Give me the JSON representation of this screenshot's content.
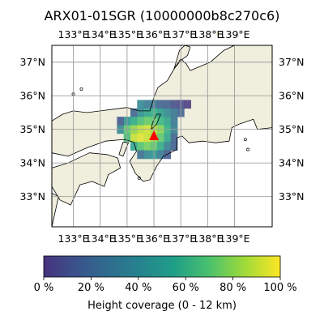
{
  "title": "ARX01-01SGR (10000000b8c270c6)",
  "map": {
    "lon_ticks": [
      "133°E",
      "134°E",
      "135°E",
      "136°E",
      "137°E",
      "138°E",
      "139°E"
    ],
    "lat_ticks": [
      "33°N",
      "34°N",
      "35°N",
      "36°N",
      "37°N"
    ],
    "lon_range": [
      132.2,
      140.4
    ],
    "lat_range": [
      32.1,
      37.5
    ],
    "land_color": "#f0eedc",
    "sea_color": "#ffffff",
    "grid": true,
    "colormap": "viridis",
    "value_range": [
      0,
      100
    ],
    "marker": {
      "shape": "triangle",
      "color": "#ff0000",
      "lon": 136.0,
      "lat": 34.8
    },
    "coverage_cells_lon_lat_value": [
      [
        135.5,
        35.75,
        45
      ],
      [
        135.75,
        35.75,
        40
      ],
      [
        136.0,
        35.75,
        38
      ],
      [
        136.25,
        35.75,
        30
      ],
      [
        136.5,
        35.75,
        28
      ],
      [
        136.75,
        35.75,
        22
      ],
      [
        137.0,
        35.75,
        20
      ],
      [
        137.25,
        35.75,
        15
      ],
      [
        135.25,
        35.5,
        30
      ],
      [
        135.5,
        35.5,
        48
      ],
      [
        135.75,
        35.5,
        55
      ],
      [
        136.0,
        35.5,
        60
      ],
      [
        136.25,
        35.5,
        52
      ],
      [
        136.5,
        35.5,
        45
      ],
      [
        136.75,
        35.5,
        38
      ],
      [
        137.0,
        35.5,
        30
      ],
      [
        134.75,
        35.25,
        25
      ],
      [
        135.0,
        35.25,
        50
      ],
      [
        135.25,
        35.25,
        58
      ],
      [
        135.5,
        35.25,
        66
      ],
      [
        135.75,
        35.25,
        72
      ],
      [
        136.0,
        35.25,
        70
      ],
      [
        136.25,
        35.25,
        62
      ],
      [
        136.5,
        35.25,
        55
      ],
      [
        136.75,
        35.25,
        40
      ],
      [
        134.75,
        35.0,
        45
      ],
      [
        135.0,
        35.0,
        70
      ],
      [
        135.25,
        35.0,
        80
      ],
      [
        135.5,
        35.0,
        88
      ],
      [
        135.75,
        35.0,
        92
      ],
      [
        136.0,
        35.0,
        85
      ],
      [
        136.25,
        35.0,
        78
      ],
      [
        136.5,
        35.0,
        60
      ],
      [
        136.75,
        35.0,
        42
      ],
      [
        135.0,
        34.75,
        65
      ],
      [
        135.25,
        34.75,
        90
      ],
      [
        135.5,
        34.75,
        95
      ],
      [
        135.75,
        34.75,
        90
      ],
      [
        136.0,
        34.75,
        82
      ],
      [
        136.25,
        34.75,
        70
      ],
      [
        136.5,
        34.75,
        55
      ],
      [
        136.75,
        34.75,
        30
      ],
      [
        135.25,
        34.5,
        55
      ],
      [
        135.5,
        34.5,
        68
      ],
      [
        135.75,
        34.5,
        75
      ],
      [
        136.0,
        34.5,
        70
      ],
      [
        136.25,
        34.5,
        58
      ],
      [
        136.5,
        34.5,
        42
      ],
      [
        136.75,
        34.5,
        28
      ],
      [
        135.5,
        34.25,
        35
      ],
      [
        135.75,
        34.25,
        45
      ],
      [
        136.0,
        34.25,
        50
      ],
      [
        136.25,
        34.25,
        40
      ],
      [
        136.5,
        34.25,
        25
      ]
    ]
  },
  "colorbar": {
    "tick_labels": [
      "0 %",
      "20 %",
      "40 %",
      "60 %",
      "80 %",
      "100 %"
    ],
    "label": "Height coverage (0 - 12 km)"
  }
}
